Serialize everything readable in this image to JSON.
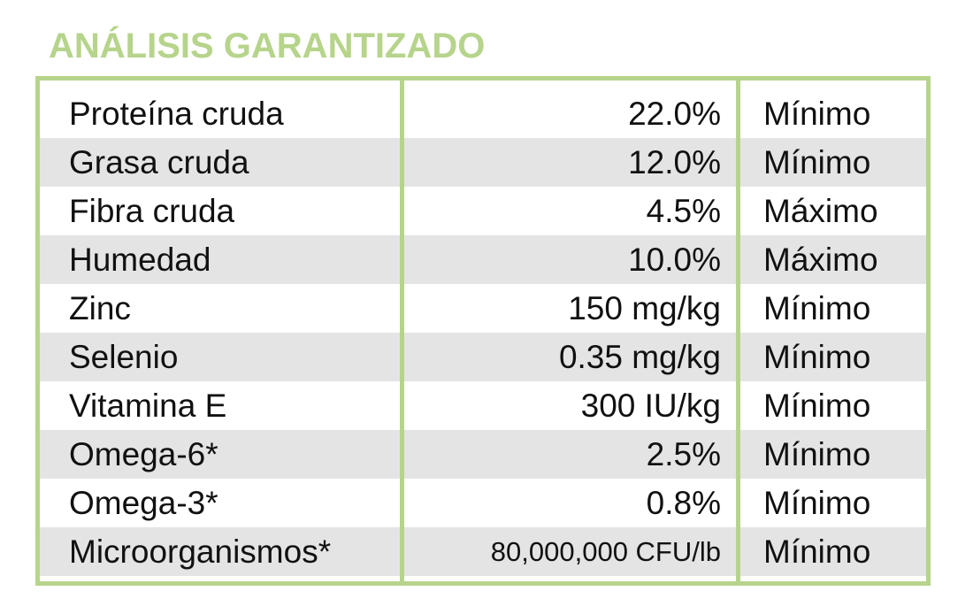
{
  "title": "ANÁLISIS GARANTIZADO",
  "table": {
    "rows": [
      [
        "Proteína cruda",
        "22.0%",
        "Mínimo"
      ],
      [
        "Grasa cruda",
        "12.0%",
        "Mínimo"
      ],
      [
        "Fibra cruda",
        "4.5%",
        "Máximo"
      ],
      [
        "Humedad",
        "10.0%",
        "Máximo"
      ],
      [
        "Zinc",
        "150 mg/kg",
        "Mínimo"
      ],
      [
        "Selenio",
        "0.35 mg/kg",
        "Mínimo"
      ],
      [
        "Vitamina E",
        "300 IU/kg",
        "Mínimo"
      ],
      [
        "Omega-6*",
        "2.5%",
        "Mínimo"
      ],
      [
        "Omega-3*",
        "0.8%",
        "Mínimo"
      ],
      [
        "Microorganismos*",
        "80,000,000 CFU/lb",
        "Mínimo"
      ]
    ]
  }
}
